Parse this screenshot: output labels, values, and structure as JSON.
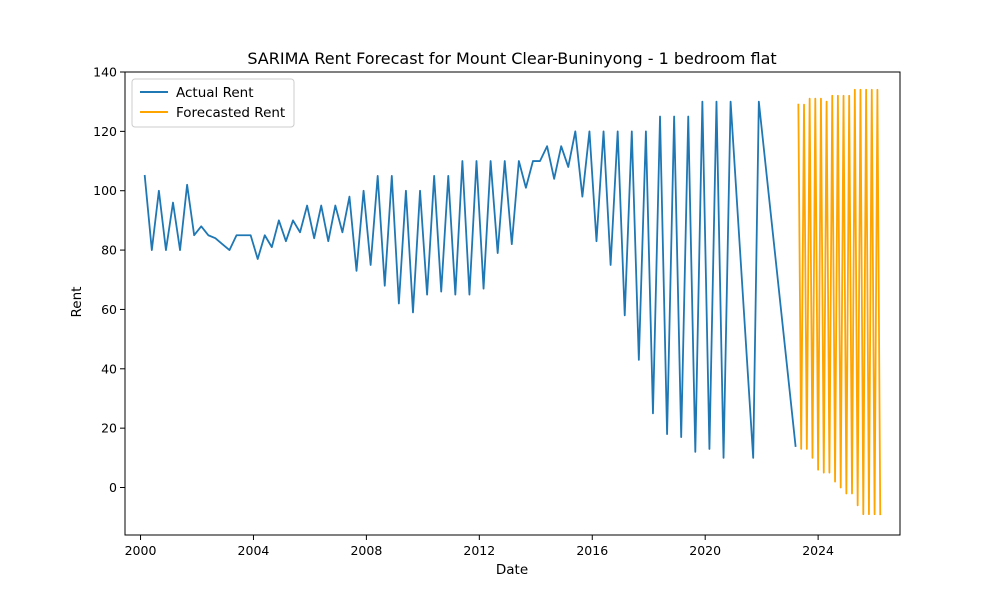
{
  "chart_data": {
    "type": "line",
    "title": "SARIMA Rent Forecast for Mount Clear-Buninyong - 1 bedroom flat",
    "xlabel": "Date",
    "ylabel": "Rent",
    "xlim": [
      1999.45,
      2026.9
    ],
    "ylim": [
      -16,
      140
    ],
    "xticks": [
      2000,
      2004,
      2008,
      2012,
      2016,
      2020,
      2024
    ],
    "yticks": [
      0,
      20,
      40,
      60,
      80,
      100,
      120,
      140
    ],
    "grid": false,
    "legend": "top-left",
    "series": [
      {
        "name": "Actual Rent",
        "color": "#1f77b4",
        "x": [
          2000.15,
          2000.4,
          2000.65,
          2000.9,
          2001.15,
          2001.4,
          2001.65,
          2001.9,
          2002.15,
          2002.4,
          2002.65,
          2002.9,
          2003.15,
          2003.4,
          2003.65,
          2003.9,
          2004.15,
          2004.4,
          2004.65,
          2004.9,
          2005.15,
          2005.4,
          2005.65,
          2005.9,
          2006.15,
          2006.4,
          2006.65,
          2006.9,
          2007.15,
          2007.4,
          2007.65,
          2007.9,
          2008.15,
          2008.4,
          2008.65,
          2008.9,
          2009.15,
          2009.4,
          2009.65,
          2009.9,
          2010.15,
          2010.4,
          2010.65,
          2010.9,
          2011.15,
          2011.4,
          2011.65,
          2011.9,
          2012.15,
          2012.4,
          2012.65,
          2012.9,
          2013.15,
          2013.4,
          2013.65,
          2013.9,
          2014.15,
          2014.4,
          2014.65,
          2014.9,
          2015.15,
          2015.4,
          2015.65,
          2015.9,
          2016.15,
          2016.4,
          2016.65,
          2016.9,
          2017.15,
          2017.4,
          2017.65,
          2017.9,
          2018.15,
          2018.4,
          2018.65,
          2018.9,
          2019.15,
          2019.4,
          2019.65,
          2019.9,
          2020.15,
          2020.4,
          2020.65,
          2020.9,
          2021.7,
          2021.9,
          2023.2
        ],
        "y": [
          105,
          80,
          100,
          80,
          96,
          80,
          102,
          85,
          88,
          85,
          84,
          82,
          80,
          85,
          85,
          85,
          77,
          85,
          81,
          90,
          83,
          90,
          86,
          95,
          84,
          95,
          83,
          95,
          86,
          98,
          73,
          100,
          75,
          105,
          68,
          105,
          62,
          100,
          59,
          100,
          65,
          105,
          66,
          105,
          65,
          110,
          65,
          110,
          67,
          110,
          79,
          110,
          82,
          110,
          101,
          110,
          110,
          115,
          104,
          115,
          108,
          120,
          98,
          120,
          83,
          120,
          75,
          120,
          58,
          120,
          43,
          120,
          25,
          125,
          18,
          125,
          17,
          125,
          12,
          130,
          13,
          130,
          10,
          130,
          10,
          130,
          14
        ]
      },
      {
        "name": "Forecasted Rent",
        "color": "#ffa500",
        "x": [
          2023.3,
          2023.4,
          2023.5,
          2023.6,
          2023.7,
          2023.8,
          2023.9,
          2024.0,
          2024.1,
          2024.2,
          2024.3,
          2024.4,
          2024.5,
          2024.6,
          2024.7,
          2024.8,
          2024.9,
          2025.0,
          2025.1,
          2025.2,
          2025.3,
          2025.4,
          2025.5,
          2025.6,
          2025.7,
          2025.8,
          2025.9,
          2026.0,
          2026.1,
          2026.2
        ],
        "y": [
          129,
          13,
          129,
          13,
          131,
          10,
          131,
          6,
          131,
          5,
          130,
          5,
          132,
          2,
          132,
          0,
          132,
          -2,
          132,
          -2,
          134,
          -6,
          134,
          -9,
          134,
          -9,
          134,
          -9,
          134,
          -9
        ]
      }
    ]
  }
}
